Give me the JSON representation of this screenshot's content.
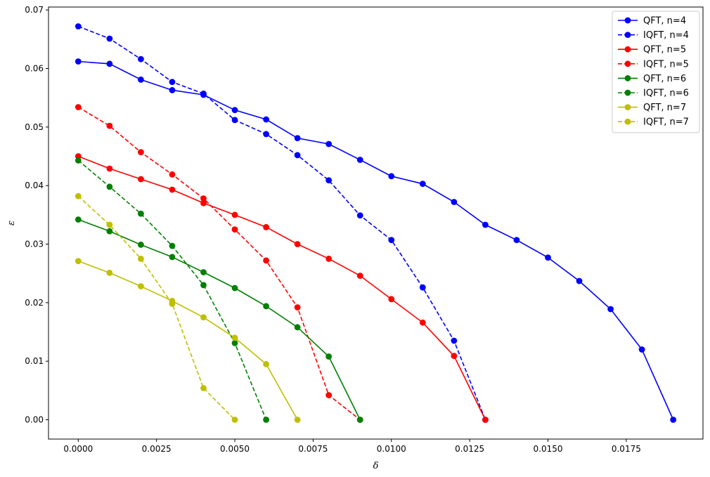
{
  "chart_data": {
    "type": "line",
    "title": "",
    "xlabel": "δ",
    "ylabel": "ε",
    "xlim": [
      -0.00095,
      0.01995
    ],
    "ylim": [
      -0.0033,
      0.0705
    ],
    "xticks": [
      0.0,
      0.0025,
      0.005,
      0.0075,
      0.01,
      0.0125,
      0.015,
      0.0175
    ],
    "xtick_labels": [
      "0.0000",
      "0.0025",
      "0.0050",
      "0.0075",
      "0.0100",
      "0.0125",
      "0.0150",
      "0.0175"
    ],
    "yticks": [
      0.0,
      0.01,
      0.02,
      0.03,
      0.04,
      0.05,
      0.06,
      0.07
    ],
    "ytick_labels": [
      "0.00",
      "0.01",
      "0.02",
      "0.03",
      "0.04",
      "0.05",
      "0.06",
      "0.07"
    ],
    "grid": false,
    "legend_position": "top-right",
    "series": [
      {
        "name": "QFT, n=4",
        "color": "#0000ff",
        "dashed": false,
        "x": [
          0,
          0.001,
          0.002,
          0.003,
          0.004,
          0.005,
          0.006,
          0.007,
          0.008,
          0.009,
          0.01,
          0.011,
          0.012,
          0.013,
          0.014,
          0.015,
          0.016,
          0.017,
          0.018,
          0.019
        ],
        "y": [
          0.0612,
          0.0608,
          0.0581,
          0.0563,
          0.0555,
          0.0529,
          0.0513,
          0.0481,
          0.0471,
          0.0444,
          0.0416,
          0.0403,
          0.0372,
          0.0333,
          0.0307,
          0.0277,
          0.0237,
          0.0189,
          0.012,
          0.0
        ]
      },
      {
        "name": "IQFT, n=4",
        "color": "#0000ff",
        "dashed": true,
        "x": [
          0,
          0.001,
          0.002,
          0.003,
          0.004,
          0.005,
          0.006,
          0.007,
          0.008,
          0.009,
          0.01,
          0.011,
          0.012,
          0.013
        ],
        "y": [
          0.0672,
          0.0651,
          0.0616,
          0.0577,
          0.0557,
          0.0512,
          0.0488,
          0.0452,
          0.0409,
          0.0349,
          0.0307,
          0.0226,
          0.0135,
          0.0
        ]
      },
      {
        "name": "QFT, n=5",
        "color": "#ff0000",
        "dashed": false,
        "x": [
          0,
          0.001,
          0.002,
          0.003,
          0.004,
          0.005,
          0.006,
          0.007,
          0.008,
          0.009,
          0.01,
          0.011,
          0.012,
          0.013
        ],
        "y": [
          0.045,
          0.0429,
          0.0411,
          0.0393,
          0.037,
          0.035,
          0.0329,
          0.03,
          0.0275,
          0.0246,
          0.0206,
          0.0166,
          0.0109,
          0.0
        ]
      },
      {
        "name": "IQFT, n=5",
        "color": "#ff0000",
        "dashed": true,
        "x": [
          0,
          0.001,
          0.002,
          0.003,
          0.004,
          0.005,
          0.006,
          0.007,
          0.008,
          0.009
        ],
        "y": [
          0.0534,
          0.0502,
          0.0457,
          0.0419,
          0.0378,
          0.0325,
          0.0272,
          0.0192,
          0.0042,
          0.0
        ]
      },
      {
        "name": "QFT, n=6",
        "color": "#008000",
        "dashed": false,
        "x": [
          0,
          0.001,
          0.002,
          0.003,
          0.004,
          0.005,
          0.006,
          0.007,
          0.008,
          0.009
        ],
        "y": [
          0.0342,
          0.0322,
          0.0299,
          0.0278,
          0.0252,
          0.0225,
          0.0194,
          0.0158,
          0.0108,
          0.0
        ]
      },
      {
        "name": "IQFT, n=6",
        "color": "#008000",
        "dashed": true,
        "x": [
          0,
          0.001,
          0.002,
          0.003,
          0.004,
          0.005,
          0.006
        ],
        "y": [
          0.0443,
          0.0398,
          0.0352,
          0.0297,
          0.023,
          0.0131,
          0.0
        ]
      },
      {
        "name": "QFT, n=7",
        "color": "#bfbf00",
        "dashed": false,
        "x": [
          0,
          0.001,
          0.002,
          0.003,
          0.004,
          0.005,
          0.006,
          0.007
        ],
        "y": [
          0.0271,
          0.0251,
          0.0228,
          0.0203,
          0.0175,
          0.014,
          0.0095,
          0.0
        ]
      },
      {
        "name": "IQFT, n=7",
        "color": "#bfbf00",
        "dashed": true,
        "x": [
          0,
          0.001,
          0.002,
          0.003,
          0.004,
          0.005
        ],
        "y": [
          0.0382,
          0.0333,
          0.0275,
          0.0198,
          0.0054,
          0.0
        ]
      }
    ]
  }
}
